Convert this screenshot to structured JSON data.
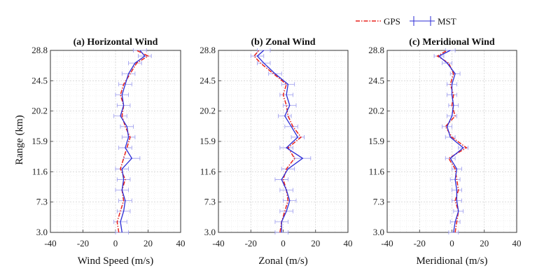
{
  "legend": {
    "gps_label": "GPS",
    "mst_label": "MST",
    "gps_color": "#e8211b",
    "mst_color": "#2b2bd6"
  },
  "chart_data": [
    {
      "type": "line",
      "title": "(a) Horizontal Wind",
      "xlabel": "Wind Speed (m/s)",
      "ylabel": "Range (km)",
      "xlim": [
        -40,
        40
      ],
      "ylim": [
        3.0,
        28.8
      ],
      "xticks": [
        "-40",
        "-20",
        "0",
        "20",
        "40"
      ],
      "yticks": [
        "3.0",
        "7.3",
        "11.6",
        "15.9",
        "20.2",
        "24.5",
        "28.8"
      ],
      "grid": true,
      "y": [
        3.0,
        4.5,
        6.0,
        7.5,
        9.0,
        10.5,
        12.0,
        13.5,
        15.0,
        16.5,
        18.0,
        19.5,
        21.0,
        22.5,
        24.0,
        25.5,
        27.0,
        28.0,
        28.8
      ],
      "series": [
        {
          "name": "GPS",
          "x": [
            2,
            1,
            3,
            5,
            4,
            6,
            3,
            5,
            7,
            9,
            6,
            4,
            5,
            3,
            5,
            9,
            13,
            20,
            13
          ]
        },
        {
          "name": "MST",
          "x": [
            4,
            3,
            5,
            6,
            4,
            5,
            4,
            10,
            6,
            8,
            7,
            3,
            5,
            4,
            6,
            8,
            12,
            18,
            15
          ],
          "err": [
            4,
            4,
            4,
            4,
            4,
            4,
            4,
            5,
            4,
            4,
            4,
            4,
            4,
            4,
            4,
            4,
            4,
            4,
            4
          ]
        }
      ]
    },
    {
      "type": "line",
      "title": "(b) Zonal Wind",
      "xlabel": "Zonal  (m/s)",
      "ylabel": "",
      "xlim": [
        -40,
        40
      ],
      "ylim": [
        3.0,
        28.8
      ],
      "xticks": [
        "-40",
        "-20",
        "0",
        "20",
        "40"
      ],
      "yticks": [
        "3.0",
        "7.3",
        "11.6",
        "15.9",
        "20.2",
        "24.5",
        "28.8"
      ],
      "grid": true,
      "y": [
        3.0,
        4.5,
        6.0,
        7.5,
        9.0,
        10.5,
        12.0,
        13.5,
        15.0,
        16.5,
        18.0,
        19.5,
        21.0,
        22.5,
        24.0,
        25.5,
        27.0,
        28.0,
        28.8
      ],
      "series": [
        {
          "name": "GPS",
          "x": [
            -2,
            -1,
            1,
            3,
            2,
            0,
            2,
            7,
            3,
            11,
            6,
            3,
            2,
            0,
            2,
            -6,
            -14,
            -18,
            -15
          ]
        },
        {
          "name": "MST",
          "x": [
            -1,
            -1,
            2,
            4,
            2,
            -1,
            3,
            12,
            2,
            9,
            5,
            1,
            4,
            2,
            3,
            -5,
            -12,
            -16,
            -12
          ],
          "err": [
            4,
            4,
            4,
            4,
            4,
            4,
            4,
            5,
            4,
            4,
            4,
            4,
            4,
            4,
            4,
            4,
            4,
            4,
            4
          ]
        }
      ]
    },
    {
      "type": "line",
      "title": "(c) Meridional Wind",
      "xlabel": "Meridional  (m/s)",
      "ylabel": "",
      "xlim": [
        -40,
        40
      ],
      "ylim": [
        3.0,
        28.8
      ],
      "xticks": [
        "-40",
        "-20",
        "0",
        "20",
        "40"
      ],
      "yticks": [
        "3.0",
        "7.3",
        "11.6",
        "15.9",
        "20.2",
        "24.5",
        "28.8"
      ],
      "grid": true,
      "y": [
        3.0,
        4.5,
        6.0,
        7.5,
        9.0,
        10.5,
        12.0,
        13.5,
        15.0,
        16.5,
        18.0,
        19.5,
        21.0,
        22.5,
        24.0,
        25.5,
        27.0,
        28.0,
        28.8
      ],
      "series": [
        {
          "name": "GPS",
          "x": [
            2,
            3,
            4,
            2,
            4,
            3,
            2,
            -2,
            9,
            0,
            -4,
            2,
            0,
            1,
            -1,
            1,
            -2,
            -9,
            -3
          ]
        },
        {
          "name": "MST",
          "x": [
            1,
            2,
            4,
            3,
            3,
            2,
            3,
            -1,
            7,
            -1,
            -3,
            0,
            1,
            0,
            0,
            2,
            -3,
            -8,
            -1
          ],
          "err": [
            3,
            3,
            3,
            3,
            3,
            3,
            3,
            3,
            3,
            3,
            3,
            3,
            3,
            3,
            3,
            3,
            3,
            3,
            3
          ]
        }
      ]
    }
  ]
}
